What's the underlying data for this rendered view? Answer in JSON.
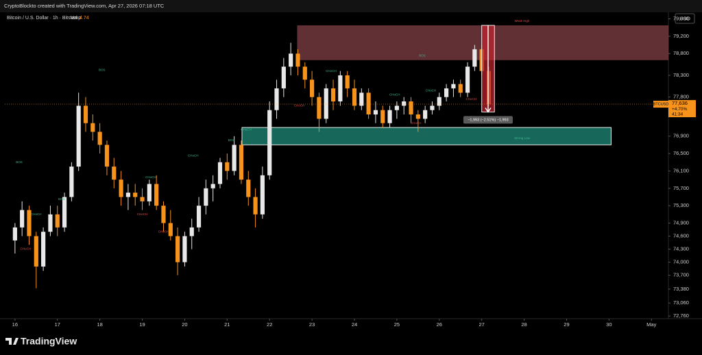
{
  "header": {
    "text": "CryptoBlockto created with TradingView.com, Apr 27, 2026 07:18 UTC"
  },
  "footer": {
    "logo": "TradingView"
  },
  "chart_data": {
    "type": "candlestick",
    "title": "Bitcoin / U.S. Dollar · 1h · Bitstamp",
    "volume_label": "Vol",
    "volume": 4.74,
    "currency": "USD",
    "up_color": "#e8e8e8",
    "down_color": "#f7931a",
    "x": [
      16,
      16.1667,
      16.3333,
      16.5,
      16.6667,
      16.8333,
      17,
      17.1667,
      17.3333,
      17.5,
      17.6667,
      17.8333,
      18,
      18.1667,
      18.3333,
      18.5,
      18.6667,
      18.8333,
      19,
      19.1667,
      19.3333,
      19.5,
      19.6667,
      19.8333,
      20,
      20.1667,
      20.3333,
      20.5,
      20.6667,
      20.8333,
      21,
      21.1667,
      21.3333,
      21.5,
      21.6667,
      21.8333,
      22,
      22.1667,
      22.3333,
      22.5,
      22.6667,
      22.8333,
      23,
      23.1667,
      23.3333,
      23.5,
      23.6667,
      23.8333,
      24,
      24.1667,
      24.3333,
      24.5,
      24.6667,
      24.8333,
      25,
      25.1667,
      25.3333,
      25.5,
      25.6667,
      25.8333,
      26,
      26.1667,
      26.3333,
      26.5,
      26.6667,
      26.8333,
      27,
      27.1667
    ],
    "ohlc": [
      [
        74500,
        74900,
        74200,
        74800
      ],
      [
        74800,
        75400,
        74600,
        75200
      ],
      [
        75200,
        75300,
        74400,
        74600
      ],
      [
        74600,
        74700,
        73400,
        73900
      ],
      [
        73900,
        74800,
        73800,
        74700
      ],
      [
        74700,
        75300,
        74600,
        75100
      ],
      [
        75100,
        75300,
        74600,
        74800
      ],
      [
        74800,
        75600,
        74700,
        75500
      ],
      [
        75500,
        76300,
        75400,
        76200
      ],
      [
        76200,
        77900,
        76100,
        77600
      ],
      [
        77600,
        77800,
        77000,
        77200
      ],
      [
        77200,
        77400,
        76800,
        77000
      ],
      [
        77000,
        77200,
        76500,
        76700
      ],
      [
        76700,
        76800,
        76000,
        76200
      ],
      [
        76200,
        76400,
        75700,
        75900
      ],
      [
        75900,
        76100,
        75300,
        75500
      ],
      [
        75500,
        75800,
        75200,
        75600
      ],
      [
        75600,
        75800,
        75300,
        75500
      ],
      [
        75500,
        75700,
        75200,
        75400
      ],
      [
        75400,
        75900,
        75300,
        75800
      ],
      [
        75800,
        76000,
        75200,
        75300
      ],
      [
        75300,
        75400,
        74700,
        74900
      ],
      [
        74900,
        75200,
        74500,
        74600
      ],
      [
        74600,
        74800,
        73700,
        74000
      ],
      [
        74000,
        74700,
        73900,
        74600
      ],
      [
        74600,
        75000,
        74300,
        74800
      ],
      [
        74800,
        75500,
        74700,
        75300
      ],
      [
        75300,
        75900,
        75100,
        75700
      ],
      [
        75700,
        76000,
        75400,
        75800
      ],
      [
        75800,
        76400,
        75700,
        76300
      ],
      [
        76300,
        76500,
        75900,
        76100
      ],
      [
        76100,
        76900,
        76000,
        76700
      ],
      [
        76700,
        76800,
        75800,
        75900
      ],
      [
        75900,
        76100,
        75300,
        75500
      ],
      [
        75500,
        75700,
        74800,
        75100
      ],
      [
        75100,
        76200,
        75000,
        76000
      ],
      [
        76000,
        77700,
        75900,
        77500
      ],
      [
        77500,
        78200,
        77300,
        78000
      ],
      [
        78000,
        78700,
        77800,
        78500
      ],
      [
        78500,
        79050,
        78300,
        78800
      ],
      [
        78800,
        78900,
        78300,
        78500
      ],
      [
        78500,
        78600,
        78000,
        78200
      ],
      [
        78200,
        78400,
        77600,
        77800
      ],
      [
        77800,
        77900,
        77000,
        77300
      ],
      [
        77300,
        78100,
        77200,
        78000
      ],
      [
        78000,
        78200,
        77500,
        77700
      ],
      [
        77700,
        78400,
        77600,
        78300
      ],
      [
        78300,
        78400,
        77800,
        78000
      ],
      [
        78000,
        78200,
        77500,
        77600
      ],
      [
        77600,
        78000,
        77500,
        77900
      ],
      [
        77900,
        78000,
        77300,
        77400
      ],
      [
        77400,
        77700,
        77200,
        77500
      ],
      [
        77500,
        77600,
        77100,
        77200
      ],
      [
        77200,
        77600,
        77100,
        77500
      ],
      [
        77500,
        77700,
        77300,
        77600
      ],
      [
        77600,
        77800,
        77400,
        77700
      ],
      [
        77700,
        77800,
        77200,
        77400
      ],
      [
        77400,
        77500,
        77000,
        77300
      ],
      [
        77300,
        77600,
        77200,
        77500
      ],
      [
        77500,
        77700,
        77400,
        77600
      ],
      [
        77600,
        77900,
        77500,
        77800
      ],
      [
        77800,
        78100,
        77700,
        78000
      ],
      [
        78000,
        78200,
        77800,
        78100
      ],
      [
        78100,
        78200,
        77800,
        77900
      ],
      [
        77900,
        78600,
        77800,
        78500
      ],
      [
        78500,
        79000,
        78400,
        78900
      ],
      [
        78900,
        79000,
        78300,
        78400
      ],
      [
        78400,
        78500,
        77600,
        77636
      ]
    ],
    "xlim": [
      15.76,
      31.4
    ],
    "xticks": [
      16,
      17,
      18,
      19,
      20,
      21,
      22,
      23,
      24,
      25,
      26,
      27,
      28,
      29,
      30,
      {
        "value": 31,
        "label": "May"
      }
    ],
    "ylim": [
      72700,
      79750
    ],
    "yticks": [
      {
        "value": 72760,
        "label": "72,760"
      },
      {
        "value": 73060,
        "label": "73,060"
      },
      {
        "value": 73380,
        "label": "73,380"
      },
      {
        "value": 73700,
        "label": "73,700"
      },
      {
        "value": 74000,
        "label": "74,000"
      },
      {
        "value": 74300,
        "label": "74,300"
      },
      {
        "value": 74600,
        "label": "74,600"
      },
      {
        "value": 74900,
        "label": "74,900"
      },
      {
        "value": 75300,
        "label": "75,300"
      },
      {
        "value": 75700,
        "label": "75,700"
      },
      {
        "value": 76100,
        "label": "76,100"
      },
      {
        "value": 76500,
        "label": "76,500"
      },
      {
        "value": 76900,
        "label": "76,900"
      },
      {
        "value": 77800,
        "label": "77,800"
      },
      {
        "value": 78300,
        "label": "78,300"
      },
      {
        "value": 78800,
        "label": "78,800"
      },
      {
        "value": 79200,
        "label": "79,200"
      },
      {
        "value": 79600,
        "label": "79,600"
      }
    ],
    "last_price": {
      "symbol": "BTCUSD",
      "value": 77636,
      "label": "77,636",
      "change": "+4.70%",
      "countdown": "41:34"
    },
    "zones": [
      {
        "name": "supply",
        "x": [
          22.65,
          31.4
        ],
        "y": [
          78650,
          79450
        ],
        "color": "#b0585e"
      },
      {
        "name": "demand",
        "x": [
          21.35,
          30.05
        ],
        "y": [
          76700,
          77100
        ],
        "color": "#1f8a78"
      }
    ],
    "measure": {
      "x": [
        27.0,
        27.3
      ],
      "y": [
        79450,
        77457
      ],
      "label": "−1,993 (−2.51%) −1,993"
    },
    "annotations": [
      {
        "text": "BOS",
        "x": 18.05,
        "y": 78420,
        "color": "#3fb68b"
      },
      {
        "text": "BOS",
        "x": 16.1,
        "y": 76300,
        "color": "#3fb68b"
      },
      {
        "text": "BOS",
        "x": 17.1,
        "y": 75450,
        "color": "#3fb68b"
      },
      {
        "text": "BOS",
        "x": 25.6,
        "y": 78750,
        "color": "#3fb68b"
      },
      {
        "text": "BOS",
        "x": 21.1,
        "y": 76800,
        "color": "#3fb68b"
      },
      {
        "text": "CHoCH",
        "x": 16.5,
        "y": 75100,
        "color": "#3fb68b"
      },
      {
        "text": "CHoCH",
        "x": 16.25,
        "y": 74300,
        "color": "#e0474c"
      },
      {
        "text": "CHoCH",
        "x": 19.2,
        "y": 75950,
        "color": "#3fb68b"
      },
      {
        "text": "CHoCH",
        "x": 19.0,
        "y": 75100,
        "color": "#e0474c"
      },
      {
        "text": "CHoCH",
        "x": 19.5,
        "y": 74700,
        "color": "#e0474c"
      },
      {
        "text": "CHoCH",
        "x": 20.2,
        "y": 76450,
        "color": "#3fb68b"
      },
      {
        "text": "CHoCH",
        "x": 21.45,
        "y": 77050,
        "color": "#3fb68b"
      },
      {
        "text": "CHoCH",
        "x": 22.7,
        "y": 77600,
        "color": "#e0474c"
      },
      {
        "text": "CHoCH",
        "x": 23.45,
        "y": 78400,
        "color": "#3fb68b"
      },
      {
        "text": "CHoCH",
        "x": 24.95,
        "y": 77850,
        "color": "#3fb68b"
      },
      {
        "text": "CHoCH",
        "x": 25.8,
        "y": 77950,
        "color": "#3fb68b"
      },
      {
        "text": "CHoCH",
        "x": 25.45,
        "y": 77200,
        "color": "#e0474c"
      },
      {
        "text": "CHoCH",
        "x": 26.75,
        "y": 77750,
        "color": "#e0474c"
      },
      {
        "text": "Weak High",
        "x": 27.95,
        "y": 79550,
        "color": "#e0474c"
      },
      {
        "text": "Strong Low",
        "x": 27.95,
        "y": 76850,
        "color": "#3fb68b"
      }
    ]
  }
}
